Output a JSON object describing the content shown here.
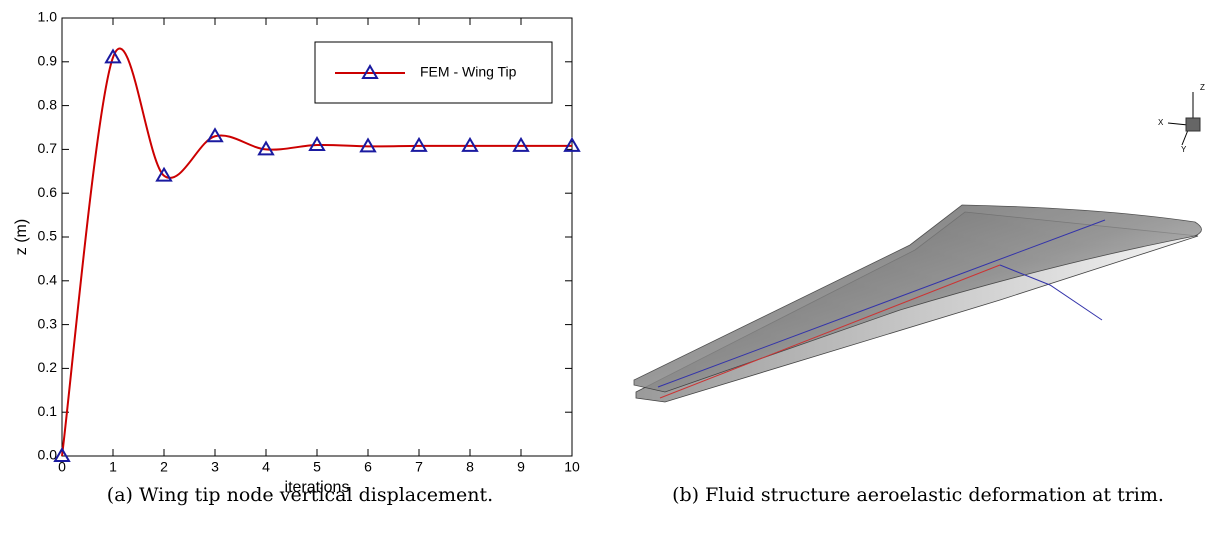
{
  "chart_data": {
    "type": "line",
    "xlabel": "iterations",
    "ylabel": "z (m)",
    "x": [
      0,
      1,
      2,
      3,
      4,
      5,
      6,
      7,
      8,
      9,
      10
    ],
    "series": [
      {
        "name": "FEM - Wing Tip",
        "color": "#cc0000",
        "marker_color": "#1a1aa0",
        "values": [
          0.0,
          0.91,
          0.64,
          0.73,
          0.7,
          0.71,
          0.707,
          0.708,
          0.708,
          0.708,
          0.708
        ]
      }
    ],
    "xlim": [
      0,
      10
    ],
    "ylim": [
      0,
      1
    ],
    "xticks": [
      0,
      1,
      2,
      3,
      4,
      5,
      6,
      7,
      8,
      9,
      10
    ],
    "yticks": [
      {
        "value": 0,
        "label": "0.0"
      },
      0.1,
      0.2,
      0.3,
      0.4,
      0.5,
      0.6,
      0.7,
      0.8,
      0.9,
      {
        "value": 1,
        "label": "1.0"
      }
    ],
    "legend": "upper right"
  },
  "captions": {
    "a": "(a) Wing tip node vertical displacement.",
    "b": "(b) Fluid structure aeroelastic deformation at trim."
  },
  "axes_triad": {
    "x": "X",
    "y": "Y",
    "z": "Z"
  }
}
